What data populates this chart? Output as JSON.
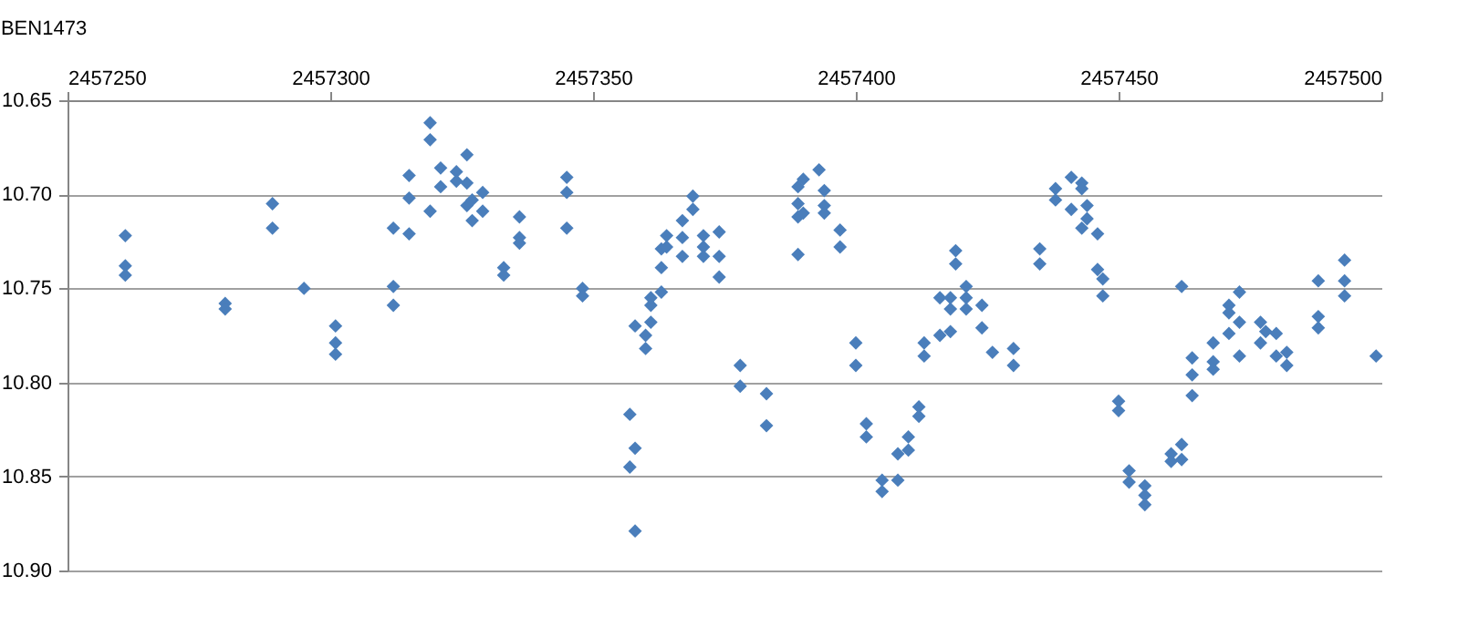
{
  "chart_data": {
    "type": "scatter",
    "title": "BEN1473",
    "x": [
      2457261,
      2457261,
      2457261,
      2457280,
      2457280,
      2457289,
      2457289,
      2457295,
      2457301,
      2457301,
      2457301,
      2457312,
      2457312,
      2457312,
      2457315,
      2457315,
      2457315,
      2457319,
      2457319,
      2457319,
      2457321,
      2457321,
      2457324,
      2457324,
      2457326,
      2457326,
      2457326,
      2457327,
      2457327,
      2457329,
      2457329,
      2457333,
      2457333,
      2457336,
      2457336,
      2457336,
      2457345,
      2457345,
      2457345,
      2457348,
      2457348,
      2457357,
      2457357,
      2457358,
      2457358,
      2457358,
      2457360,
      2457360,
      2457361,
      2457361,
      2457361,
      2457363,
      2457363,
      2457363,
      2457364,
      2457364,
      2457367,
      2457367,
      2457367,
      2457369,
      2457369,
      2457371,
      2457371,
      2457371,
      2457374,
      2457374,
      2457374,
      2457378,
      2457378,
      2457383,
      2457383,
      2457389,
      2457389,
      2457389,
      2457389,
      2457390,
      2457390,
      2457393,
      2457394,
      2457394,
      2457394,
      2457397,
      2457397,
      2457400,
      2457400,
      2457402,
      2457402,
      2457405,
      2457405,
      2457408,
      2457408,
      2457410,
      2457410,
      2457412,
      2457412,
      2457413,
      2457413,
      2457416,
      2457416,
      2457418,
      2457418,
      2457418,
      2457419,
      2457419,
      2457421,
      2457421,
      2457421,
      2457424,
      2457424,
      2457426,
      2457430,
      2457430,
      2457435,
      2457435,
      2457438,
      2457438,
      2457441,
      2457441,
      2457443,
      2457443,
      2457443,
      2457444,
      2457444,
      2457446,
      2457446,
      2457447,
      2457447,
      2457450,
      2457450,
      2457452,
      2457452,
      2457455,
      2457455,
      2457455,
      2457460,
      2457460,
      2457462,
      2457462,
      2457462,
      2457464,
      2457464,
      2457464,
      2457468,
      2457468,
      2457468,
      2457471,
      2457471,
      2457471,
      2457473,
      2457473,
      2457473,
      2457477,
      2457477,
      2457478,
      2457480,
      2457480,
      2457482,
      2457482,
      2457488,
      2457488,
      2457488,
      2457493,
      2457493,
      2457493,
      2457499
    ],
    "series": [
      {
        "color": "#4a7ebb",
        "values": [
          10.722,
          10.738,
          10.743,
          10.758,
          10.761,
          10.705,
          10.718,
          10.75,
          10.77,
          10.779,
          10.785,
          10.718,
          10.749,
          10.759,
          10.69,
          10.702,
          10.721,
          10.662,
          10.671,
          10.709,
          10.686,
          10.696,
          10.688,
          10.693,
          10.679,
          10.694,
          10.706,
          10.714,
          10.703,
          10.699,
          10.709,
          10.739,
          10.743,
          10.712,
          10.723,
          10.726,
          10.691,
          10.699,
          10.718,
          10.75,
          10.754,
          10.817,
          10.845,
          10.835,
          10.879,
          10.77,
          10.775,
          10.782,
          10.768,
          10.759,
          10.755,
          10.752,
          10.739,
          10.729,
          10.722,
          10.728,
          10.714,
          10.723,
          10.733,
          10.701,
          10.708,
          10.722,
          10.728,
          10.733,
          10.72,
          10.733,
          10.744,
          10.791,
          10.802,
          10.806,
          10.823,
          10.732,
          10.712,
          10.705,
          10.696,
          10.692,
          10.71,
          10.687,
          10.698,
          10.706,
          10.71,
          10.719,
          10.728,
          10.779,
          10.791,
          10.822,
          10.829,
          10.852,
          10.858,
          10.838,
          10.852,
          10.829,
          10.836,
          10.813,
          10.818,
          10.779,
          10.786,
          10.775,
          10.755,
          10.755,
          10.761,
          10.773,
          10.73,
          10.737,
          10.749,
          10.755,
          10.761,
          10.759,
          10.771,
          10.784,
          10.782,
          10.791,
          10.729,
          10.737,
          10.697,
          10.703,
          10.691,
          10.708,
          10.694,
          10.697,
          10.718,
          10.706,
          10.713,
          10.721,
          10.74,
          10.745,
          10.754,
          10.81,
          10.815,
          10.847,
          10.853,
          10.855,
          10.86,
          10.865,
          10.838,
          10.842,
          10.833,
          10.841,
          10.749,
          10.787,
          10.796,
          10.807,
          10.779,
          10.789,
          10.793,
          10.759,
          10.763,
          10.774,
          10.752,
          10.768,
          10.786,
          10.768,
          10.779,
          10.773,
          10.774,
          10.786,
          10.784,
          10.791,
          10.746,
          10.765,
          10.771,
          10.735,
          10.746,
          10.754,
          10.786
        ]
      }
    ],
    "xlim": [
      2457250,
      2457500
    ],
    "xticks": [
      2457250,
      2457300,
      2457350,
      2457400,
      2457450,
      2457500
    ],
    "ylim": [
      10.9,
      10.65
    ],
    "yticks": [
      10.65,
      {
        "value": 10.7,
        "label": "10.70"
      },
      10.75,
      {
        "value": 10.8,
        "label": "10.80"
      },
      10.85,
      {
        "value": 10.9,
        "label": "10.90"
      }
    ],
    "grid": "y",
    "marker": "diamond"
  }
}
